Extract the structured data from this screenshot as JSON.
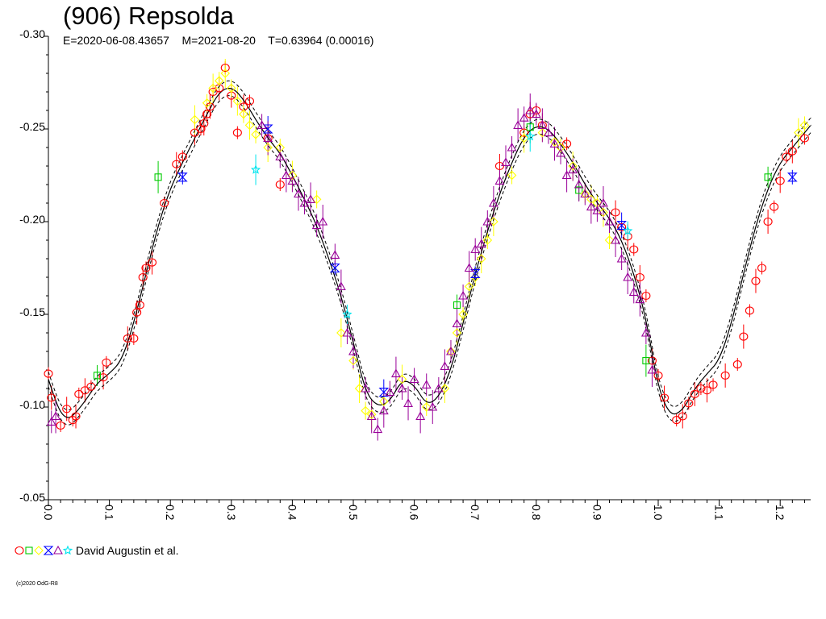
{
  "chart_data": {
    "type": "scatter",
    "title": "(906) Repsolda",
    "subtitle": "E=2020-06-08.43657    M=2021-08-20    T=0.63964 (0.00016)",
    "xlabel": "",
    "ylabel": "",
    "xlim": [
      0.0,
      1.25
    ],
    "ylim": [
      -0.3,
      -0.05
    ],
    "y_inverted": true,
    "x_ticks": [
      "0.0",
      "0.1",
      "0.2",
      "0.3",
      "0.4",
      "0.5",
      "0.6",
      "0.7",
      "0.8",
      "0.9",
      "1.0",
      "1.1",
      "1.2"
    ],
    "y_ticks": [
      "-0.30",
      "-0.25",
      "-0.20",
      "-0.15",
      "-0.10",
      "-0.05"
    ],
    "grid": false,
    "legend_position": "bottom-left",
    "legend_label": "David Augustin et al.",
    "copyright": "(c)2020 OdG-R8",
    "fit_curve": {
      "x": [
        0.0,
        0.01,
        0.02,
        0.03,
        0.04,
        0.06,
        0.08,
        0.1,
        0.12,
        0.14,
        0.16,
        0.18,
        0.2,
        0.22,
        0.24,
        0.26,
        0.28,
        0.3,
        0.32,
        0.34,
        0.36,
        0.38,
        0.4,
        0.42,
        0.44,
        0.46,
        0.48,
        0.5,
        0.52,
        0.54,
        0.56,
        0.58,
        0.6,
        0.62,
        0.64,
        0.66,
        0.68,
        0.7,
        0.72,
        0.74,
        0.76,
        0.78,
        0.8,
        0.82,
        0.84,
        0.86,
        0.88,
        0.9,
        0.92,
        0.94,
        0.96,
        0.98,
        1.0,
        1.02,
        1.04,
        1.06,
        1.08,
        1.1,
        1.12,
        1.14,
        1.16,
        1.18,
        1.2,
        1.22,
        1.25
      ],
      "y": [
        -0.115,
        -0.105,
        -0.097,
        -0.094,
        -0.095,
        -0.103,
        -0.113,
        -0.118,
        -0.125,
        -0.145,
        -0.172,
        -0.198,
        -0.218,
        -0.232,
        -0.245,
        -0.258,
        -0.27,
        -0.273,
        -0.266,
        -0.255,
        -0.245,
        -0.237,
        -0.225,
        -0.212,
        -0.198,
        -0.18,
        -0.16,
        -0.135,
        -0.108,
        -0.1,
        -0.103,
        -0.115,
        -0.112,
        -0.101,
        -0.105,
        -0.12,
        -0.145,
        -0.172,
        -0.195,
        -0.215,
        -0.232,
        -0.246,
        -0.252,
        -0.25,
        -0.242,
        -0.232,
        -0.22,
        -0.21,
        -0.202,
        -0.19,
        -0.172,
        -0.148,
        -0.11,
        -0.095,
        -0.098,
        -0.11,
        -0.118,
        -0.125,
        -0.145,
        -0.172,
        -0.198,
        -0.218,
        -0.232,
        -0.24,
        -0.252
      ]
    },
    "series": [
      {
        "name": "",
        "marker": "circle",
        "color": "#ff0000",
        "x": [
          0.0,
          0.005,
          0.02,
          0.03,
          0.04,
          0.045,
          0.05,
          0.06,
          0.07,
          0.09,
          0.095,
          0.13,
          0.14,
          0.145,
          0.15,
          0.155,
          0.16,
          0.17,
          0.19,
          0.21,
          0.22,
          0.24,
          0.25,
          0.255,
          0.26,
          0.265,
          0.27,
          0.28,
          0.29,
          0.3,
          0.31,
          0.32,
          0.33,
          0.36,
          0.38,
          0.74,
          0.78,
          0.79,
          0.8,
          0.81,
          0.85,
          0.93,
          0.94,
          0.95,
          0.96,
          0.97,
          0.98,
          0.99,
          1.0,
          1.01,
          1.03,
          1.04,
          1.05,
          1.06,
          1.07,
          1.08,
          1.09,
          1.11,
          1.13,
          1.14,
          1.15,
          1.16,
          1.17,
          1.18,
          1.19,
          1.2,
          1.21,
          1.22,
          1.24
        ],
        "y": [
          -0.118,
          -0.105,
          -0.09,
          -0.099,
          -0.093,
          -0.095,
          -0.107,
          -0.109,
          -0.111,
          -0.116,
          -0.124,
          -0.137,
          -0.137,
          -0.151,
          -0.155,
          -0.17,
          -0.175,
          -0.178,
          -0.21,
          -0.231,
          -0.235,
          -0.248,
          -0.25,
          -0.253,
          -0.258,
          -0.262,
          -0.27,
          -0.272,
          -0.283,
          -0.268,
          -0.248,
          -0.262,
          -0.265,
          -0.245,
          -0.22,
          -0.23,
          -0.248,
          -0.258,
          -0.26,
          -0.252,
          -0.242,
          -0.205,
          -0.197,
          -0.192,
          -0.185,
          -0.17,
          -0.16,
          -0.125,
          -0.117,
          -0.105,
          -0.093,
          -0.095,
          -0.102,
          -0.107,
          -0.11,
          -0.109,
          -0.112,
          -0.117,
          -0.123,
          -0.138,
          -0.152,
          -0.168,
          -0.175,
          -0.2,
          -0.208,
          -0.222,
          -0.235,
          -0.238,
          -0.245
        ]
      },
      {
        "name": "",
        "marker": "square",
        "color": "#00cc00",
        "x": [
          0.08,
          0.18,
          0.67,
          0.79,
          0.87,
          0.98,
          1.18
        ],
        "y": [
          -0.117,
          -0.224,
          -0.155,
          -0.251,
          -0.217,
          -0.125,
          -0.224
        ]
      },
      {
        "name": "",
        "marker": "diamond",
        "color": "#ffff00",
        "x": [
          0.24,
          0.26,
          0.27,
          0.28,
          0.29,
          0.3,
          0.31,
          0.32,
          0.33,
          0.34,
          0.36,
          0.38,
          0.4,
          0.44,
          0.48,
          0.5,
          0.51,
          0.52,
          0.53,
          0.55,
          0.58,
          0.62,
          0.65,
          0.66,
          0.67,
          0.68,
          0.69,
          0.7,
          0.71,
          0.72,
          0.73,
          0.76,
          0.78,
          0.81,
          0.83,
          0.84,
          0.86,
          0.88,
          0.89,
          0.9,
          0.91,
          0.92,
          1.23,
          1.24
        ],
        "y": [
          -0.255,
          -0.264,
          -0.272,
          -0.276,
          -0.28,
          -0.272,
          -0.265,
          -0.258,
          -0.252,
          -0.247,
          -0.24,
          -0.24,
          -0.225,
          -0.212,
          -0.14,
          -0.125,
          -0.11,
          -0.098,
          -0.096,
          -0.103,
          -0.115,
          -0.1,
          -0.11,
          -0.13,
          -0.14,
          -0.15,
          -0.165,
          -0.17,
          -0.18,
          -0.19,
          -0.2,
          -0.225,
          -0.245,
          -0.248,
          -0.243,
          -0.24,
          -0.23,
          -0.215,
          -0.212,
          -0.21,
          -0.205,
          -0.19,
          -0.248,
          -0.252
        ]
      },
      {
        "name": "",
        "marker": "hourglass",
        "color": "#0000ff",
        "x": [
          0.22,
          0.36,
          0.47,
          0.55,
          0.7,
          0.94,
          1.22
        ],
        "y": [
          -0.224,
          -0.25,
          -0.175,
          -0.108,
          -0.172,
          -0.198,
          -0.224
        ]
      },
      {
        "name": "",
        "marker": "triangle",
        "color": "#990099",
        "x": [
          0.005,
          0.012,
          0.35,
          0.36,
          0.38,
          0.39,
          0.4,
          0.41,
          0.42,
          0.43,
          0.44,
          0.45,
          0.47,
          0.48,
          0.49,
          0.5,
          0.52,
          0.53,
          0.54,
          0.55,
          0.56,
          0.57,
          0.58,
          0.59,
          0.6,
          0.61,
          0.62,
          0.63,
          0.64,
          0.65,
          0.66,
          0.67,
          0.68,
          0.69,
          0.7,
          0.71,
          0.72,
          0.73,
          0.74,
          0.75,
          0.76,
          0.77,
          0.78,
          0.79,
          0.8,
          0.81,
          0.82,
          0.83,
          0.84,
          0.85,
          0.86,
          0.87,
          0.88,
          0.89,
          0.9,
          0.91,
          0.92,
          0.93,
          0.94,
          0.95,
          0.96,
          0.97,
          0.98,
          0.99
        ],
        "y": [
          -0.092,
          -0.095,
          -0.252,
          -0.245,
          -0.235,
          -0.225,
          -0.222,
          -0.215,
          -0.21,
          -0.212,
          -0.198,
          -0.2,
          -0.182,
          -0.165,
          -0.14,
          -0.13,
          -0.11,
          -0.095,
          -0.088,
          -0.098,
          -0.108,
          -0.118,
          -0.11,
          -0.102,
          -0.115,
          -0.095,
          -0.112,
          -0.1,
          -0.11,
          -0.122,
          -0.13,
          -0.145,
          -0.16,
          -0.175,
          -0.185,
          -0.188,
          -0.2,
          -0.21,
          -0.222,
          -0.232,
          -0.24,
          -0.252,
          -0.256,
          -0.26,
          -0.258,
          -0.252,
          -0.248,
          -0.242,
          -0.237,
          -0.225,
          -0.228,
          -0.22,
          -0.215,
          -0.208,
          -0.206,
          -0.21,
          -0.2,
          -0.19,
          -0.18,
          -0.17,
          -0.162,
          -0.158,
          -0.14,
          -0.12
        ]
      },
      {
        "name": "",
        "marker": "star",
        "color": "#00e5ee",
        "x": [
          0.34,
          0.49,
          0.79,
          0.95
        ],
        "y": [
          -0.228,
          -0.15,
          -0.246,
          -0.195
        ]
      }
    ]
  }
}
